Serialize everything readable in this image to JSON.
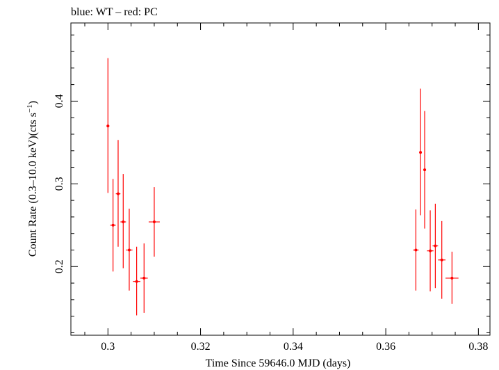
{
  "chart_data": {
    "type": "scatter",
    "title": "blue: WT – red: PC",
    "xlabel": "Time Since 59646.0 MJD (days)",
    "ylabel_main": "Count Rate (0.3–10.0 keV)(cts s",
    "ylabel_sup": "−1",
    "ylabel_end": ")",
    "xlim": [
      0.292,
      0.3825
    ],
    "ylim": [
      0.117,
      0.4945
    ],
    "x_ticks": [
      {
        "value": 0.3,
        "label": "0.3"
      },
      {
        "value": 0.32,
        "label": "0.32"
      },
      {
        "value": 0.34,
        "label": "0.34"
      },
      {
        "value": 0.36,
        "label": "0.36"
      },
      {
        "value": 0.38,
        "label": "0.38"
      }
    ],
    "y_ticks": [
      {
        "value": 0.2,
        "label": "0.2"
      },
      {
        "value": 0.3,
        "label": "0.3"
      },
      {
        "value": 0.4,
        "label": "0.4"
      }
    ],
    "x_minor_step": 0.005,
    "y_minor_step": 0.02,
    "colors": {
      "PC": "#ff0000",
      "WT": "#0000ff",
      "axes": "#000000"
    },
    "series": [
      {
        "name": "PC",
        "color": "#ff0000",
        "points": [
          {
            "x": 0.3,
            "xerr": 0.0003,
            "y": 0.37,
            "ylo": 0.289,
            "yhi": 0.452
          },
          {
            "x": 0.3011,
            "xerr": 0.0006,
            "y": 0.25,
            "ylo": 0.194,
            "yhi": 0.306
          },
          {
            "x": 0.3022,
            "xerr": 0.0005,
            "y": 0.288,
            "ylo": 0.224,
            "yhi": 0.353
          },
          {
            "x": 0.3033,
            "xerr": 0.0006,
            "y": 0.254,
            "ylo": 0.198,
            "yhi": 0.312
          },
          {
            "x": 0.3046,
            "xerr": 0.0007,
            "y": 0.22,
            "ylo": 0.171,
            "yhi": 0.27
          },
          {
            "x": 0.3062,
            "xerr": 0.0008,
            "y": 0.182,
            "ylo": 0.141,
            "yhi": 0.224
          },
          {
            "x": 0.3078,
            "xerr": 0.0008,
            "y": 0.186,
            "ylo": 0.144,
            "yhi": 0.228
          },
          {
            "x": 0.31,
            "xerr": 0.0012,
            "y": 0.254,
            "ylo": 0.212,
            "yhi": 0.296
          },
          {
            "x": 0.3665,
            "xerr": 0.0006,
            "y": 0.22,
            "ylo": 0.171,
            "yhi": 0.269
          },
          {
            "x": 0.3675,
            "xerr": 0.0002,
            "y": 0.338,
            "ylo": 0.262,
            "yhi": 0.415
          },
          {
            "x": 0.3684,
            "xerr": 0.0003,
            "y": 0.317,
            "ylo": 0.246,
            "yhi": 0.388
          },
          {
            "x": 0.3696,
            "xerr": 0.0007,
            "y": 0.219,
            "ylo": 0.17,
            "yhi": 0.268
          },
          {
            "x": 0.3707,
            "xerr": 0.0006,
            "y": 0.225,
            "ylo": 0.174,
            "yhi": 0.276
          },
          {
            "x": 0.3721,
            "xerr": 0.0008,
            "y": 0.208,
            "ylo": 0.161,
            "yhi": 0.255
          },
          {
            "x": 0.3743,
            "xerr": 0.0014,
            "y": 0.186,
            "ylo": 0.155,
            "yhi": 0.218
          }
        ]
      }
    ]
  }
}
